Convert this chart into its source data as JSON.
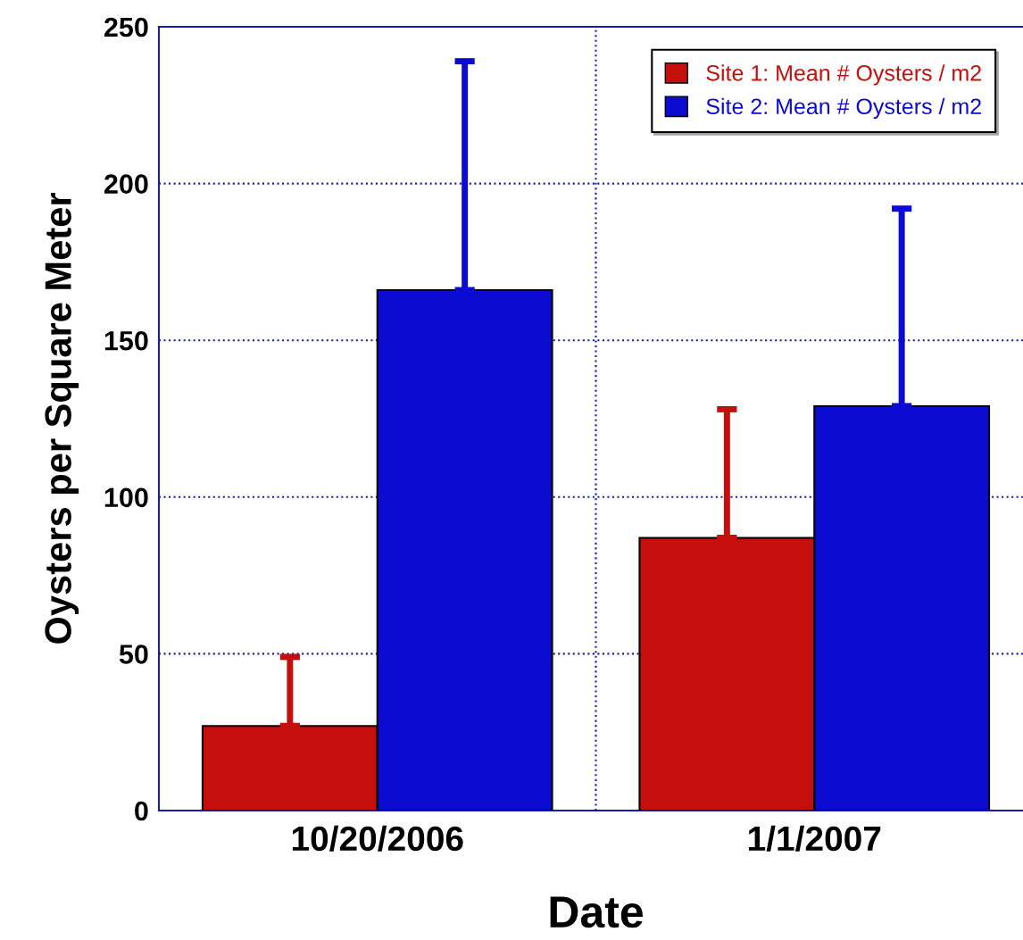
{
  "chart_data": {
    "type": "bar",
    "xlabel": "Date",
    "ylabel": "Oysters per Square Meter",
    "categories": [
      "10/20/2006",
      "1/1/2007"
    ],
    "series": [
      {
        "name": "Site 1: Mean # Oysters / m2",
        "color": "#c40f0c",
        "values": [
          27,
          87
        ],
        "errors": [
          22,
          41
        ]
      },
      {
        "name": "Site 2: Mean # Oysters / m2",
        "color": "#0b0bd2",
        "values": [
          166,
          129
        ],
        "errors": [
          73,
          63
        ]
      }
    ],
    "ylim": [
      0,
      250
    ],
    "yticks": [
      0,
      50,
      100,
      150,
      200,
      250
    ],
    "grid": true,
    "legend": "top right"
  }
}
